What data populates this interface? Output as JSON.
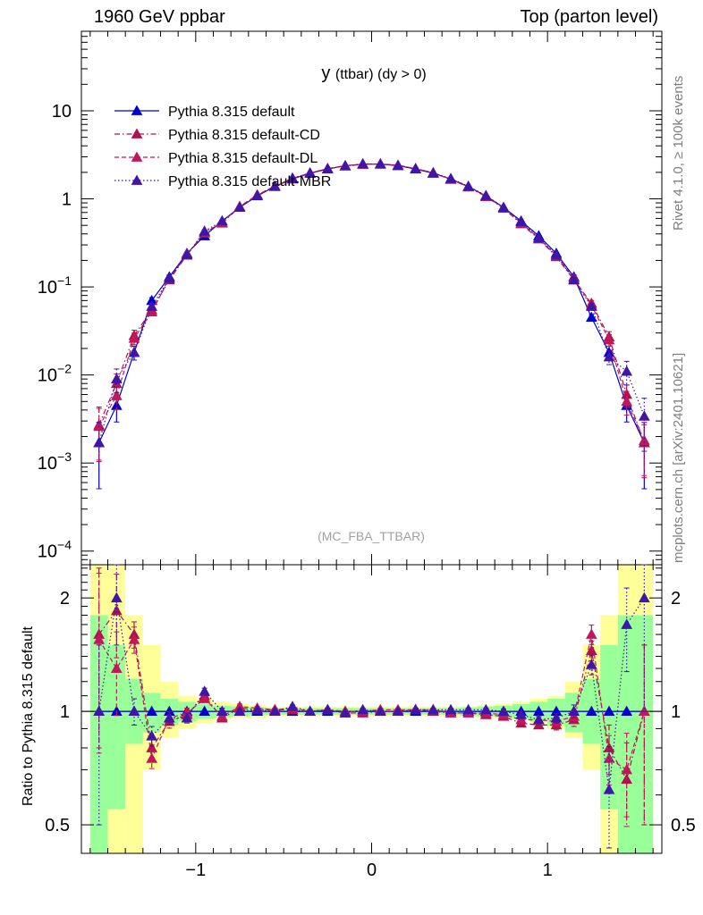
{
  "header": {
    "left": "1960 GeV ppbar",
    "right": "Top (parton level)"
  },
  "side_labels": {
    "rivet": "Rivet 4.1.0, ≥ 100k events",
    "mcplots": "mcplots.cern.ch [arXiv:2401.10621]"
  },
  "colors": {
    "default": "#0000cc",
    "cd": "#b0104e",
    "dl": "#c2185b",
    "mbr": "#3f16a8",
    "band_yellow": "#ffff99",
    "band_green": "#99ff99"
  },
  "chart_data": [
    {
      "type": "line",
      "title": "y (ttbar) (dy > 0)",
      "title_main": "y",
      "title_sub": "(ttbar) (dy > 0)",
      "watermark": "(MC_FBA_TTBAR)",
      "xlabel": "",
      "ylabel": "",
      "yscale": "log",
      "xlim": [
        -1.65,
        1.65
      ],
      "ylim": [
        7e-05,
        80
      ],
      "ytick_labels": [
        {
          "value": 10,
          "base": "10",
          "exp": ""
        },
        {
          "value": 1,
          "base": "1",
          "exp": ""
        },
        {
          "value": 0.1,
          "base": "10",
          "exp": "−1"
        },
        {
          "value": 0.01,
          "base": "10",
          "exp": "−2"
        },
        {
          "value": 0.001,
          "base": "10",
          "exp": "−3"
        },
        {
          "value": 0.0001,
          "base": "10",
          "exp": "−4"
        }
      ],
      "legend": [
        "Pythia 8.315 default",
        "Pythia 8.315 default-CD",
        "Pythia 8.315 default-DL",
        "Pythia 8.315 default-MBR"
      ],
      "legend_position": "top-left",
      "x": [
        -1.55,
        -1.45,
        -1.35,
        -1.25,
        -1.15,
        -1.05,
        -0.95,
        -0.85,
        -0.75,
        -0.65,
        -0.55,
        -0.45,
        -0.35,
        -0.25,
        -0.15,
        -0.05,
        0.05,
        0.15,
        0.25,
        0.35,
        0.45,
        0.55,
        0.65,
        0.75,
        0.85,
        0.95,
        1.05,
        1.15,
        1.25,
        1.35,
        1.45,
        1.55
      ],
      "series": [
        {
          "name": "Pythia 8.315 default",
          "style": "solid",
          "values": [
            0.0017,
            0.0045,
            0.018,
            0.07,
            0.13,
            0.24,
            0.38,
            0.56,
            0.8,
            1.08,
            1.38,
            1.68,
            1.95,
            2.18,
            2.38,
            2.48,
            2.48,
            2.38,
            2.18,
            1.95,
            1.68,
            1.38,
            1.08,
            0.8,
            0.56,
            0.38,
            0.24,
            0.13,
            0.045,
            0.018,
            0.0045,
            0.0017
          ],
          "errors_rel": [
            0.7,
            0.35,
            0.18,
            0.08,
            0.05,
            0.03,
            0.02,
            0.02,
            0.015,
            0.01,
            0.01,
            0.01,
            0.01,
            0.01,
            0.01,
            0.01,
            0.01,
            0.01,
            0.01,
            0.01,
            0.01,
            0.01,
            0.01,
            0.015,
            0.02,
            0.02,
            0.03,
            0.05,
            0.08,
            0.18,
            0.35,
            0.7
          ]
        },
        {
          "name": "Pythia 8.315 default-CD",
          "style": "dashdot",
          "values": [
            0.0027,
            0.008,
            0.028,
            0.055,
            0.12,
            0.23,
            0.42,
            0.53,
            0.81,
            1.1,
            1.39,
            1.7,
            1.97,
            2.2,
            2.37,
            2.46,
            2.49,
            2.4,
            2.2,
            1.98,
            1.66,
            1.36,
            1.06,
            0.78,
            0.52,
            0.35,
            0.22,
            0.12,
            0.065,
            0.027,
            0.006,
            0.0017
          ],
          "errors_rel": [
            0.6,
            0.28,
            0.15,
            0.08,
            0.05,
            0.03,
            0.02,
            0.02,
            0.015,
            0.01,
            0.01,
            0.01,
            0.01,
            0.01,
            0.01,
            0.01,
            0.01,
            0.01,
            0.01,
            0.01,
            0.01,
            0.01,
            0.01,
            0.015,
            0.02,
            0.02,
            0.03,
            0.05,
            0.08,
            0.15,
            0.28,
            0.6
          ]
        },
        {
          "name": "Pythia 8.315 default-DL",
          "style": "dashed",
          "values": [
            0.0026,
            0.0058,
            0.026,
            0.052,
            0.125,
            0.235,
            0.41,
            0.54,
            0.82,
            1.11,
            1.4,
            1.71,
            1.96,
            2.21,
            2.38,
            2.47,
            2.5,
            2.41,
            2.21,
            1.97,
            1.67,
            1.37,
            1.07,
            0.79,
            0.53,
            0.36,
            0.225,
            0.125,
            0.062,
            0.025,
            0.005,
            0.0018
          ],
          "errors_rel": [
            0.6,
            0.3,
            0.15,
            0.08,
            0.05,
            0.03,
            0.02,
            0.02,
            0.015,
            0.01,
            0.01,
            0.01,
            0.01,
            0.01,
            0.01,
            0.01,
            0.01,
            0.01,
            0.01,
            0.01,
            0.01,
            0.01,
            0.01,
            0.015,
            0.02,
            0.02,
            0.03,
            0.05,
            0.08,
            0.15,
            0.3,
            0.6
          ]
        },
        {
          "name": "Pythia 8.315 default-MBR",
          "style": "dotted",
          "values": [
            0.0017,
            0.009,
            0.018,
            0.06,
            0.125,
            0.23,
            0.43,
            0.56,
            0.8,
            1.09,
            1.38,
            1.72,
            1.96,
            2.2,
            2.36,
            2.5,
            2.48,
            2.39,
            2.2,
            1.97,
            1.7,
            1.39,
            1.09,
            0.8,
            0.55,
            0.36,
            0.23,
            0.12,
            0.06,
            0.016,
            0.011,
            0.0034
          ],
          "errors_rel": [
            0.7,
            0.3,
            0.18,
            0.08,
            0.05,
            0.03,
            0.02,
            0.02,
            0.015,
            0.01,
            0.01,
            0.01,
            0.01,
            0.01,
            0.01,
            0.01,
            0.01,
            0.01,
            0.01,
            0.01,
            0.01,
            0.01,
            0.01,
            0.015,
            0.02,
            0.02,
            0.03,
            0.05,
            0.08,
            0.18,
            0.3,
            0.6
          ]
        }
      ]
    },
    {
      "type": "line",
      "title": "",
      "xlabel": "",
      "ylabel": "Ratio to Pythia 8.315 default",
      "yscale": "log",
      "xlim": [
        -1.65,
        1.65
      ],
      "ylim": [
        0.42,
        2.45
      ],
      "xticks": [
        -1,
        0,
        1
      ],
      "xtick_labels": [
        "−1",
        "0",
        "1"
      ],
      "yticks": [
        0.5,
        1,
        2
      ],
      "ytick_labels": [
        "0.5",
        "1",
        "2"
      ],
      "bands": {
        "yellow": [
          [
            0.2,
            2.6
          ],
          [
            0.2,
            2.6
          ],
          [
            0.4,
            1.8
          ],
          [
            0.7,
            1.5
          ],
          [
            0.85,
            1.2
          ],
          [
            0.9,
            1.1
          ],
          [
            0.93,
            1.08
          ],
          [
            0.95,
            1.06
          ],
          [
            0.96,
            1.05
          ],
          [
            0.96,
            1.04
          ],
          [
            0.97,
            1.03
          ],
          [
            0.97,
            1.03
          ],
          [
            0.97,
            1.03
          ],
          [
            0.97,
            1.03
          ],
          [
            0.97,
            1.03
          ],
          [
            0.97,
            1.03
          ],
          [
            0.97,
            1.03
          ],
          [
            0.97,
            1.03
          ],
          [
            0.97,
            1.03
          ],
          [
            0.97,
            1.03
          ],
          [
            0.97,
            1.03
          ],
          [
            0.97,
            1.03
          ],
          [
            0.96,
            1.04
          ],
          [
            0.96,
            1.05
          ],
          [
            0.95,
            1.06
          ],
          [
            0.93,
            1.08
          ],
          [
            0.9,
            1.1
          ],
          [
            0.85,
            1.2
          ],
          [
            0.7,
            1.5
          ],
          [
            0.4,
            1.8
          ],
          [
            0.2,
            2.6
          ],
          [
            0.2,
            2.6
          ]
        ],
        "green": [
          [
            0.3,
            1.8
          ],
          [
            0.55,
            1.5
          ],
          [
            0.82,
            1.22
          ],
          [
            0.88,
            1.12
          ],
          [
            0.92,
            1.08
          ],
          [
            0.94,
            1.06
          ],
          [
            0.955,
            1.045
          ],
          [
            0.965,
            1.035
          ],
          [
            0.97,
            1.03
          ],
          [
            0.975,
            1.025
          ],
          [
            0.98,
            1.02
          ],
          [
            0.98,
            1.02
          ],
          [
            0.98,
            1.02
          ],
          [
            0.98,
            1.02
          ],
          [
            0.98,
            1.02
          ],
          [
            0.98,
            1.02
          ],
          [
            0.98,
            1.02
          ],
          [
            0.98,
            1.02
          ],
          [
            0.98,
            1.02
          ],
          [
            0.98,
            1.02
          ],
          [
            0.98,
            1.02
          ],
          [
            0.975,
            1.025
          ],
          [
            0.97,
            1.03
          ],
          [
            0.965,
            1.035
          ],
          [
            0.955,
            1.045
          ],
          [
            0.94,
            1.06
          ],
          [
            0.92,
            1.08
          ],
          [
            0.88,
            1.12
          ],
          [
            0.82,
            1.22
          ],
          [
            0.55,
            1.5
          ],
          [
            0.3,
            1.8
          ],
          [
            0.3,
            1.8
          ]
        ]
      },
      "series": [
        {
          "name": "Pythia 8.315 default",
          "style": "solid",
          "values": [
            1,
            1,
            1,
            1,
            1,
            1,
            1,
            1,
            1,
            1,
            1,
            1,
            1,
            1,
            1,
            1,
            1,
            1,
            1,
            1,
            1,
            1,
            1,
            1,
            1,
            1,
            1,
            1,
            1,
            1,
            1,
            1
          ],
          "errors_rel": [
            0,
            0,
            0,
            0,
            0,
            0,
            0,
            0,
            0,
            0,
            0,
            0,
            0,
            0,
            0,
            0,
            0,
            0,
            0,
            0,
            0,
            0,
            0,
            0,
            0,
            0,
            0,
            0,
            0,
            0,
            0,
            0
          ]
        },
        {
          "name": "Pythia 8.315 default-CD",
          "style": "dashdot",
          "values": [
            1.6,
            1.85,
            1.6,
            0.8,
            0.94,
            0.98,
            1.1,
            0.96,
            1.02,
            1.01,
            1.01,
            1.01,
            1.0,
            1.01,
            0.99,
            0.99,
            1.0,
            1.0,
            1.01,
            1.0,
            0.99,
            0.99,
            0.98,
            0.97,
            0.93,
            0.92,
            0.92,
            0.95,
            1.45,
            0.8,
            0.66,
            1.0
          ],
          "errors_rel": [
            0.5,
            0.25,
            0.08,
            0.06,
            0.04,
            0.03,
            0.02,
            0.02,
            0.015,
            0.01,
            0.01,
            0.01,
            0.01,
            0.01,
            0.01,
            0.01,
            0.01,
            0.01,
            0.01,
            0.01,
            0.01,
            0.01,
            0.01,
            0.015,
            0.02,
            0.02,
            0.03,
            0.04,
            0.06,
            0.15,
            0.25,
            0.5
          ]
        },
        {
          "name": "Pythia 8.315 default-DL",
          "style": "dashed",
          "values": [
            1.55,
            1.3,
            1.55,
            0.75,
            0.96,
            0.99,
            1.08,
            0.97,
            1.03,
            1.02,
            1.01,
            1.02,
            1.0,
            1.01,
            1.0,
            1.0,
            1.01,
            1.01,
            1.01,
            1.01,
            0.99,
            0.99,
            0.99,
            0.98,
            0.95,
            0.95,
            0.94,
            0.97,
            1.6,
            0.75,
            0.7,
            1.0
          ],
          "errors_rel": [
            0.5,
            0.25,
            0.08,
            0.06,
            0.04,
            0.03,
            0.02,
            0.02,
            0.015,
            0.01,
            0.01,
            0.01,
            0.01,
            0.01,
            0.01,
            0.01,
            0.01,
            0.01,
            0.01,
            0.01,
            0.01,
            0.01,
            0.01,
            0.015,
            0.02,
            0.02,
            0.03,
            0.04,
            0.06,
            0.15,
            0.25,
            0.5
          ]
        },
        {
          "name": "Pythia 8.315 default-MBR",
          "style": "dotted",
          "values": [
            1.0,
            2.0,
            1.0,
            0.86,
            0.96,
            0.96,
            1.13,
            1.0,
            1.0,
            1.01,
            1.0,
            1.03,
            1.0,
            1.01,
            0.99,
            1.01,
            1.0,
            1.0,
            1.01,
            1.01,
            1.01,
            1.01,
            1.01,
            1.0,
            0.98,
            0.95,
            0.96,
            1.0,
            1.33,
            0.62,
            1.7,
            2.0
          ],
          "errors_rel": [
            0.5,
            0.25,
            0.08,
            0.06,
            0.04,
            0.03,
            0.02,
            0.02,
            0.015,
            0.01,
            0.01,
            0.01,
            0.01,
            0.01,
            0.01,
            0.01,
            0.01,
            0.01,
            0.01,
            0.01,
            0.01,
            0.01,
            0.01,
            0.015,
            0.02,
            0.02,
            0.03,
            0.04,
            0.06,
            0.3,
            0.25,
            0.5
          ]
        }
      ]
    }
  ]
}
